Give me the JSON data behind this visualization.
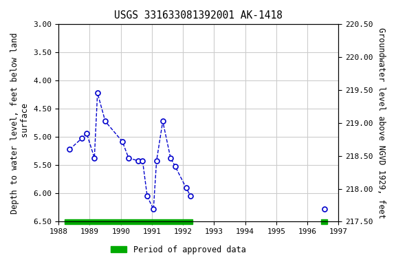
{
  "title": "USGS 331633081392001 AK-1418",
  "ylabel_left": "Depth to water level, feet below land\n surface",
  "ylabel_right": "Groundwater level above NGVD 1929, feet",
  "xlim": [
    1988,
    1997
  ],
  "ylim_left": [
    3.0,
    6.5
  ],
  "ylim_right": [
    217.5,
    220.5
  ],
  "xticks": [
    1988,
    1989,
    1990,
    1991,
    1992,
    1993,
    1994,
    1995,
    1996,
    1997
  ],
  "yticks_left": [
    3.0,
    3.5,
    4.0,
    4.5,
    5.0,
    5.5,
    6.0,
    6.5
  ],
  "yticks_right": [
    217.5,
    218.0,
    218.5,
    219.0,
    219.5,
    220.0,
    220.5
  ],
  "data_x_connected": [
    1988.35,
    1988.75,
    1988.9,
    1989.15,
    1989.25,
    1989.5,
    1990.05,
    1990.25,
    1990.55,
    1990.7,
    1990.85,
    1991.05,
    1991.15,
    1991.35,
    1991.6,
    1991.75,
    1992.1,
    1992.25
  ],
  "data_y_connected": [
    5.22,
    5.02,
    4.93,
    5.37,
    4.22,
    4.72,
    5.08,
    5.37,
    5.42,
    5.42,
    6.05,
    6.28,
    5.42,
    4.72,
    5.37,
    5.52,
    5.9,
    6.05
  ],
  "data_x_isolated": [
    1996.55
  ],
  "data_y_isolated": [
    6.27
  ],
  "bar_green_x1": 1988.2,
  "bar_green_x2": 1992.3,
  "bar_green2_x1": 1996.45,
  "bar_green2_x2": 1996.65,
  "bar_color": "#00aa00",
  "line_color": "#0000cc",
  "marker_facecolor": "#ffffff",
  "marker_edgecolor": "#0000cc",
  "background_color": "#ffffff",
  "grid_color": "#cccccc",
  "title_fontsize": 10.5,
  "label_fontsize": 8.5,
  "tick_fontsize": 8
}
